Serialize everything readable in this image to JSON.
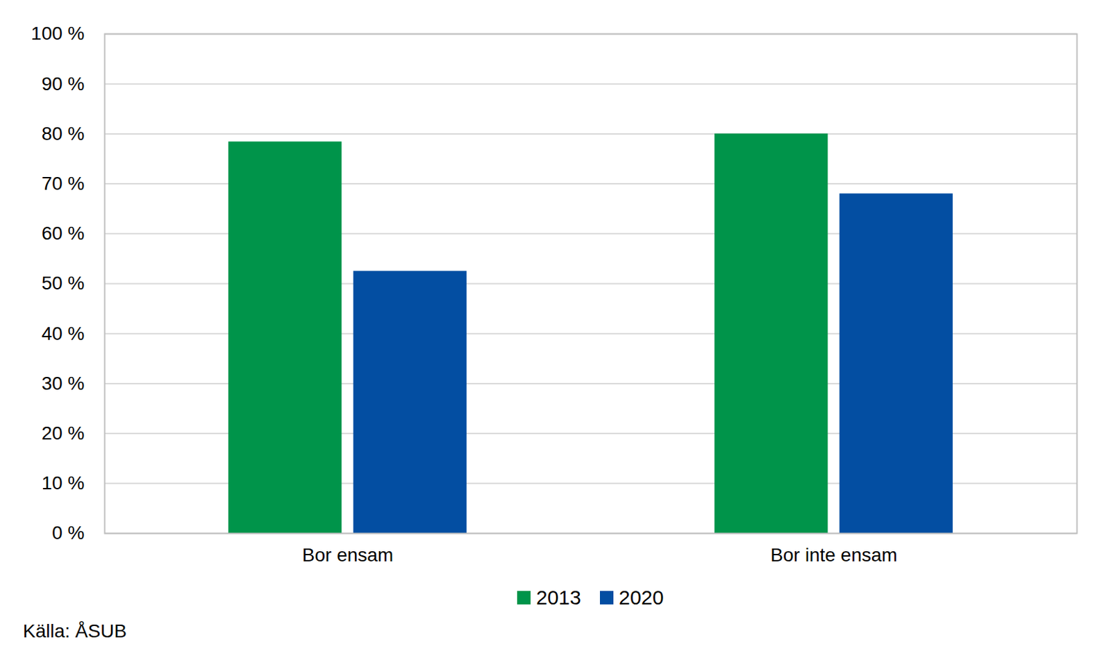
{
  "chart_data": {
    "type": "bar",
    "categories": [
      "Bor ensam",
      "Bor inte ensam"
    ],
    "series": [
      {
        "name": "2013",
        "color": "#00944a",
        "values": [
          78.4,
          80
        ]
      },
      {
        "name": "2020",
        "color": "#034ea2",
        "values": [
          52.5,
          68
        ]
      }
    ],
    "ylim": [
      0,
      100
    ],
    "yticks": [
      {
        "value": 0,
        "label": "0 %"
      },
      {
        "value": 10,
        "label": "10 %"
      },
      {
        "value": 20,
        "label": "20 %"
      },
      {
        "value": 30,
        "label": "30 %"
      },
      {
        "value": 40,
        "label": "40 %"
      },
      {
        "value": 50,
        "label": "50 %"
      },
      {
        "value": 60,
        "label": "60 %"
      },
      {
        "value": 70,
        "label": "70 %"
      },
      {
        "value": 80,
        "label": "80 %"
      },
      {
        "value": 90,
        "label": "90 %"
      },
      {
        "value": 100,
        "label": "100 %"
      }
    ],
    "grid": true,
    "legend": "bottom",
    "caption": "Källa: ÅSUB"
  }
}
